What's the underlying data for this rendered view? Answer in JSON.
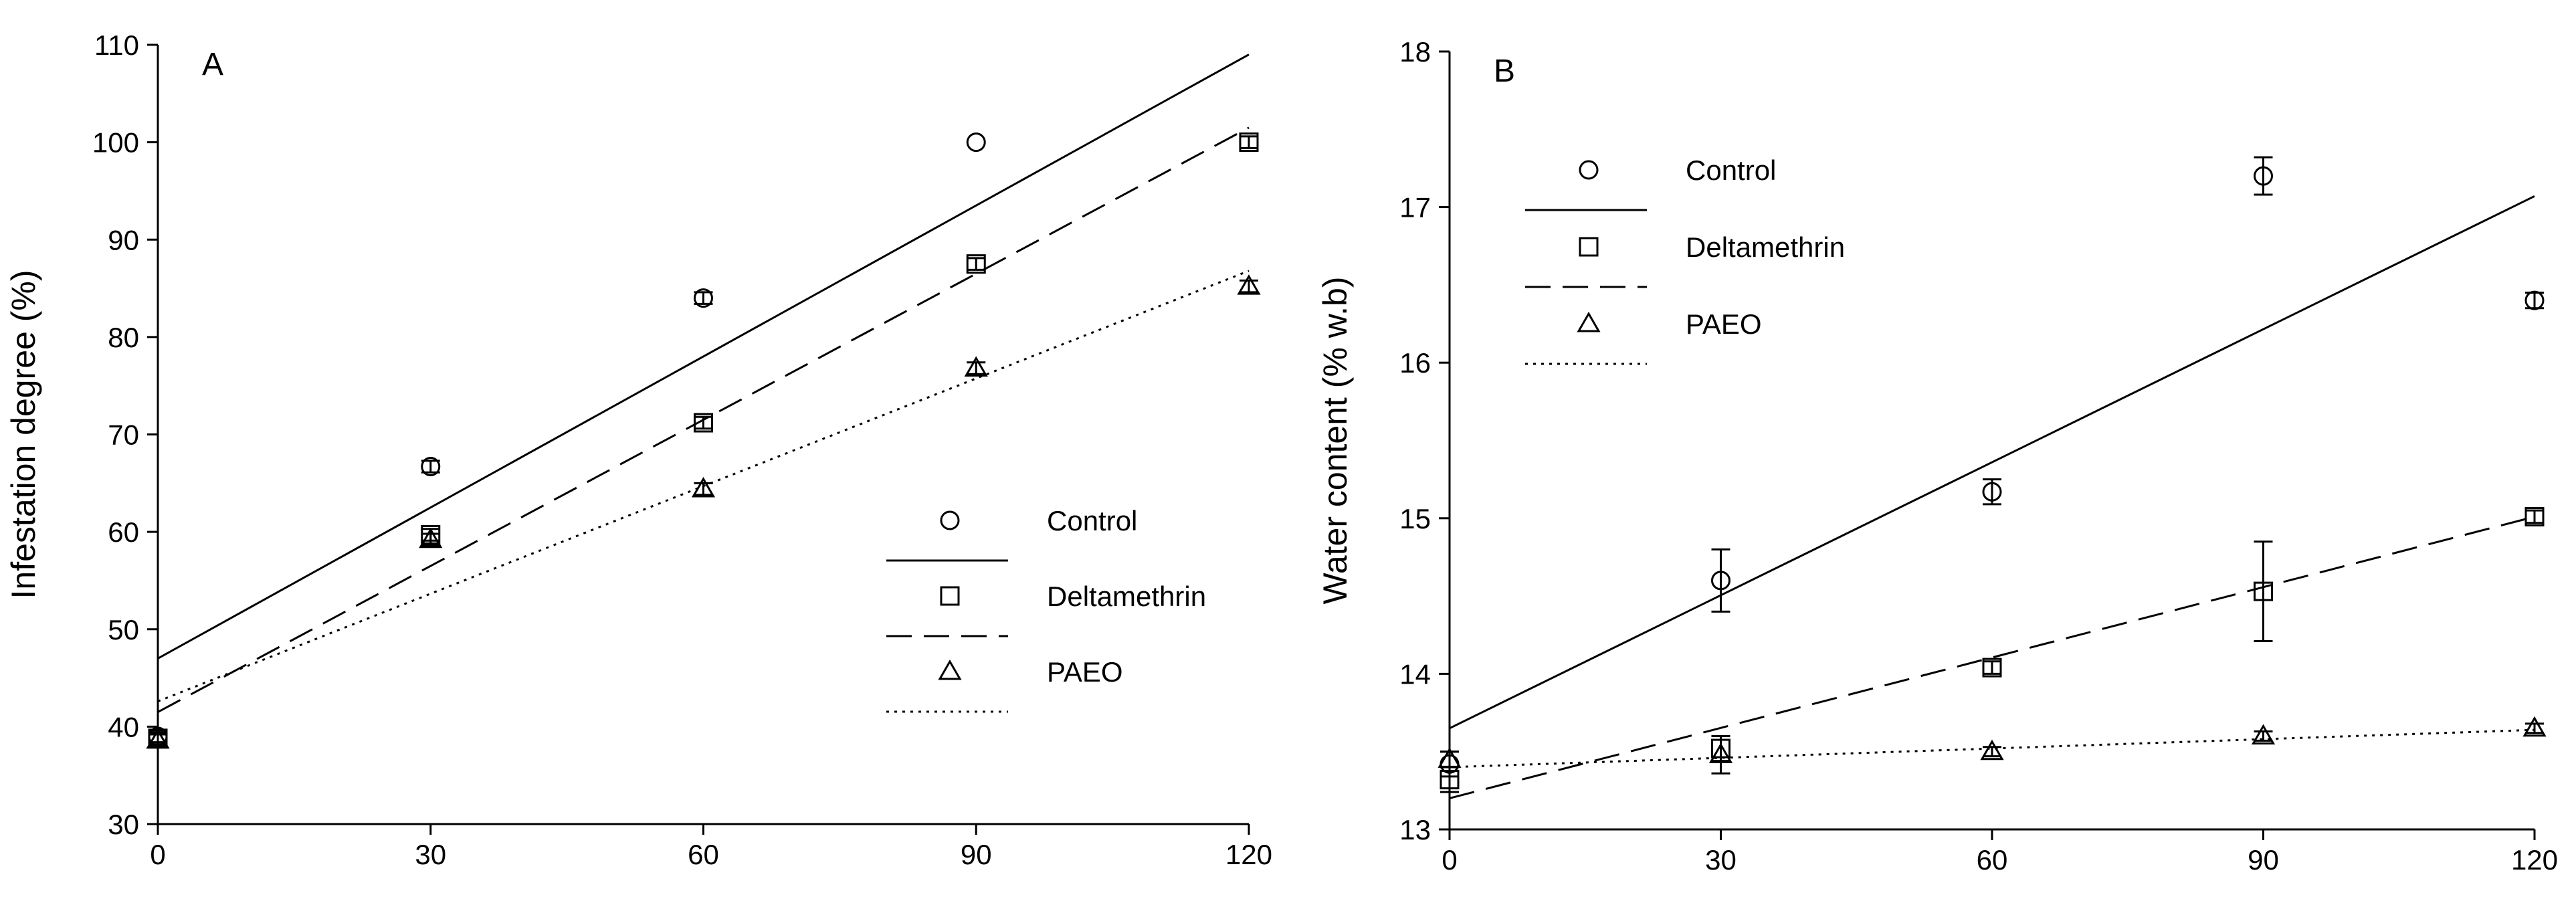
{
  "colors": {
    "ink": "#000000",
    "background": "#ffffff"
  },
  "chart_data": [
    {
      "type": "scatter",
      "panel_label": "A",
      "xlabel": "",
      "ylabel": "Infestation degree (%)",
      "xlim": [
        0,
        120
      ],
      "ylim": [
        30,
        110
      ],
      "xticks": [
        0,
        30,
        60,
        90,
        120
      ],
      "yticks": [
        30,
        40,
        50,
        60,
        70,
        80,
        90,
        100,
        110
      ],
      "legend_position": "center-right",
      "series": [
        {
          "name": "Control",
          "marker": "circle",
          "line": "solid",
          "x": [
            0,
            30,
            60,
            90,
            120
          ],
          "y": [
            39.0,
            66.7,
            84.0,
            100.0,
            null
          ],
          "err": [
            0.6,
            0.6,
            0.6,
            0,
            0
          ],
          "fit": {
            "intercept": 47.0,
            "slope": 0.5167
          }
        },
        {
          "name": "Deltamethrin",
          "marker": "square",
          "line": "dashed",
          "x": [
            0,
            30,
            60,
            90,
            120
          ],
          "y": [
            38.8,
            59.7,
            71.2,
            87.5,
            100.0
          ],
          "err": [
            0.6,
            0.6,
            0.6,
            0.6,
            0.6
          ],
          "fit": {
            "intercept": 41.5,
            "slope": 0.5
          }
        },
        {
          "name": "PAEO",
          "marker": "triangle",
          "line": "dotted",
          "x": [
            0,
            30,
            60,
            90,
            120
          ],
          "y": [
            38.6,
            59.2,
            64.4,
            76.8,
            85.2
          ],
          "err": [
            0.6,
            0.6,
            0.6,
            0.6,
            0.6
          ],
          "fit": {
            "intercept": 42.6,
            "slope": 0.3683
          }
        }
      ]
    },
    {
      "type": "scatter",
      "panel_label": "B",
      "xlabel": "",
      "ylabel": "Water content (% w.b)",
      "xlim": [
        0,
        120
      ],
      "ylim": [
        13,
        18
      ],
      "xticks": [
        0,
        30,
        60,
        90,
        120
      ],
      "yticks": [
        13,
        14,
        15,
        16,
        17,
        18
      ],
      "legend_position": "top-left",
      "series": [
        {
          "name": "Control",
          "marker": "circle",
          "line": "solid",
          "x": [
            0,
            30,
            60,
            90,
            120
          ],
          "y": [
            13.42,
            14.6,
            15.17,
            17.2,
            16.4
          ],
          "err": [
            0.08,
            0.2,
            0.08,
            0.12,
            0.05
          ],
          "fit": {
            "intercept": 13.65,
            "slope": 0.0285
          }
        },
        {
          "name": "Deltamethrin",
          "marker": "square",
          "line": "dashed",
          "x": [
            0,
            30,
            60,
            90,
            120
          ],
          "y": [
            13.32,
            13.52,
            14.04,
            14.53,
            15.01
          ],
          "err": [
            0.08,
            0.08,
            0.04,
            0.32,
            0.04
          ],
          "fit": {
            "intercept": 13.2,
            "slope": 0.01508
          }
        },
        {
          "name": "PAEO",
          "marker": "triangle",
          "line": "dotted",
          "x": [
            0,
            30,
            60,
            90,
            120
          ],
          "y": [
            13.45,
            13.48,
            13.5,
            13.6,
            13.65
          ],
          "err": [
            0.05,
            0.12,
            0.03,
            0.03,
            0.03
          ],
          "fit": {
            "intercept": 13.4,
            "slope": 0.002
          }
        }
      ]
    }
  ]
}
